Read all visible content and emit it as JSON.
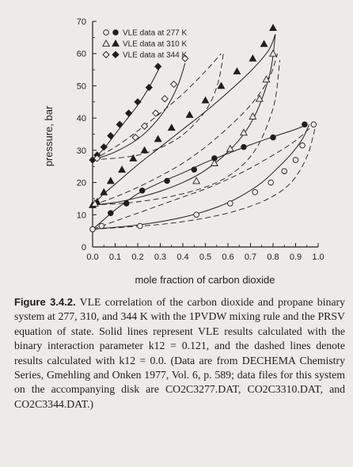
{
  "chart_data": {
    "type": "scatter",
    "xlabel": "mole fraction of carbon dioxide",
    "ylabel": "pressure, bar",
    "xlim": [
      0.0,
      1.0
    ],
    "ylim": [
      0,
      70
    ],
    "xticks": [
      "0.0",
      "0.1",
      "0.2",
      "0.3",
      "0.4",
      "0.5",
      "0.6",
      "0.7",
      "0.8",
      "0.9",
      "1.0"
    ],
    "yticks": [
      "0",
      "10",
      "20",
      "30",
      "40",
      "50",
      "60",
      "70"
    ],
    "grid": false,
    "legend": "top-left",
    "legend_entries": [
      {
        "label": "VLE data at 277 K",
        "open_marker": "circle",
        "filled_marker": "circle"
      },
      {
        "label": "VLE data at 310 K",
        "open_marker": "triangle",
        "filled_marker": "triangle"
      },
      {
        "label": "VLE data at 344 K",
        "open_marker": "diamond",
        "filled_marker": "diamond"
      }
    ],
    "series": [
      {
        "temperature": "277 K",
        "marker": "circle",
        "fill": "filled",
        "x": [
          0.0,
          0.08,
          0.15,
          0.22,
          0.33,
          0.45,
          0.54,
          0.67,
          0.8,
          0.94
        ],
        "y": [
          5.5,
          10.5,
          13.5,
          17.5,
          20.5,
          24,
          27.5,
          31,
          34,
          38
        ]
      },
      {
        "temperature": "277 K",
        "marker": "circle",
        "fill": "open",
        "x": [
          0.0,
          0.04,
          0.21,
          0.46,
          0.61,
          0.72,
          0.79,
          0.85,
          0.9,
          0.93,
          0.98
        ],
        "y": [
          5.5,
          6.5,
          6.5,
          10,
          13.5,
          17,
          20,
          23.5,
          27,
          31.5,
          38
        ]
      },
      {
        "temperature": "310 K",
        "marker": "triangle",
        "fill": "filled",
        "x": [
          0.0,
          0.02,
          0.05,
          0.08,
          0.13,
          0.18,
          0.23,
          0.29,
          0.35,
          0.43,
          0.5,
          0.57,
          0.64,
          0.71,
          0.76,
          0.8
        ],
        "y": [
          13,
          14,
          17,
          20.5,
          24,
          27.5,
          30,
          33.5,
          37,
          41,
          45.5,
          50,
          54.5,
          58.5,
          63,
          68
        ]
      },
      {
        "temperature": "310 K",
        "marker": "triangle",
        "fill": "open",
        "x": [
          0.01,
          0.46,
          0.54,
          0.61,
          0.67,
          0.71,
          0.74,
          0.77,
          0.8
        ],
        "y": [
          13.5,
          20.5,
          26,
          30.5,
          35.5,
          40.5,
          46,
          52,
          60
        ]
      },
      {
        "temperature": "344 K",
        "marker": "diamond",
        "fill": "filled",
        "x": [
          0.0,
          0.02,
          0.05,
          0.08,
          0.12,
          0.16,
          0.2,
          0.25,
          0.29
        ],
        "y": [
          27,
          28.5,
          31,
          34.5,
          38,
          41.5,
          45,
          49.5,
          56
        ]
      },
      {
        "temperature": "344 K",
        "marker": "diamond",
        "fill": "open",
        "x": [
          0.02,
          0.19,
          0.23,
          0.28,
          0.32,
          0.36,
          0.41
        ],
        "y": [
          27.5,
          34,
          37.5,
          41.5,
          46,
          50.5,
          58.5
        ]
      }
    ],
    "solid_curves": [
      {
        "x": [
          0.0,
          0.05,
          0.1,
          0.2,
          0.3,
          0.4,
          0.5,
          0.6,
          0.7,
          0.8,
          0.9,
          0.95
        ],
        "y": [
          5.5,
          8.5,
          11.5,
          16.5,
          20,
          23,
          26.2,
          29,
          31.7,
          34.2,
          36.5,
          38
        ]
      },
      {
        "x": [
          0.0,
          0.2,
          0.4,
          0.55,
          0.65,
          0.75,
          0.82,
          0.88,
          0.93,
          0.96
        ],
        "y": [
          5.5,
          6.8,
          9.2,
          12.3,
          15.5,
          20,
          24.5,
          28.8,
          33.5,
          38
        ]
      },
      {
        "x": [
          0.0,
          0.05,
          0.1,
          0.2,
          0.3,
          0.4,
          0.5,
          0.6,
          0.7,
          0.78,
          0.81
        ],
        "y": [
          13,
          16.5,
          19.5,
          25.5,
          31,
          36.5,
          42,
          48,
          54.5,
          61,
          66
        ]
      },
      {
        "x": [
          0.0,
          0.1,
          0.2,
          0.3,
          0.4,
          0.5,
          0.6,
          0.68,
          0.74,
          0.79,
          0.81
        ],
        "y": [
          13,
          13.8,
          15.3,
          17.3,
          20,
          23.8,
          29.5,
          36,
          44,
          55,
          66
        ]
      },
      {
        "x": [
          0.0,
          0.05,
          0.1,
          0.15,
          0.2,
          0.25,
          0.3
        ],
        "y": [
          27,
          30.5,
          35,
          39.5,
          44,
          49.5,
          56
        ]
      },
      {
        "x": [
          0.0,
          0.1,
          0.2,
          0.27,
          0.33,
          0.38,
          0.41
        ],
        "y": [
          27,
          29.5,
          33.5,
          38,
          43.5,
          50.5,
          57
        ]
      }
    ],
    "dashed_curves": [
      {
        "x": [
          0.0,
          0.1,
          0.2,
          0.3,
          0.4,
          0.5,
          0.6,
          0.7,
          0.8,
          0.9,
          0.98
        ],
        "y": [
          5.5,
          8,
          10.5,
          13,
          15.5,
          18,
          21,
          24.5,
          28.5,
          33,
          38
        ]
      },
      {
        "x": [
          0.0,
          0.3,
          0.5,
          0.65,
          0.78,
          0.88,
          0.95,
          0.99
        ],
        "y": [
          5.5,
          7,
          9,
          11.5,
          15,
          20,
          28,
          38
        ]
      },
      {
        "x": [
          0.0,
          0.1,
          0.2,
          0.3,
          0.4,
          0.5,
          0.6,
          0.7,
          0.78,
          0.82
        ],
        "y": [
          13,
          15.5,
          18.5,
          22,
          26,
          31,
          37,
          44,
          52,
          60
        ]
      },
      {
        "x": [
          0.0,
          0.2,
          0.4,
          0.55,
          0.65,
          0.72,
          0.77,
          0.81,
          0.83
        ],
        "y": [
          13,
          14,
          16.5,
          20,
          24.5,
          30,
          37,
          46,
          58
        ]
      },
      {
        "x": [
          0.0,
          0.1,
          0.2,
          0.3,
          0.4,
          0.5,
          0.57
        ],
        "y": [
          27,
          31,
          36,
          41.5,
          47.5,
          54.5,
          60
        ]
      },
      {
        "x": [
          0.0,
          0.2,
          0.35,
          0.45,
          0.52,
          0.56,
          0.58
        ],
        "y": [
          27,
          28.5,
          32.5,
          38,
          44.5,
          52,
          60
        ]
      }
    ]
  },
  "caption": {
    "label": "Figure 3.4.2.",
    "text": " VLE correlation of the carbon dioxide and propane binary system at 277, 310, and 344 K with the 1PVDW mixing rule and the PRSV equation of state. Solid lines represent VLE results calculated with the binary interaction parameter k12 = 0.121, and the dashed lines denote results calculated with k12 = 0.0. (Data are from DECHEMA Chemistry Series, Gmehling and Onken 1977, Vol. 6, p. 589; data files for this system on the accompanying disk are CO2C3277.DAT, CO2C3310.DAT, and CO2C3344.DAT.)"
  }
}
